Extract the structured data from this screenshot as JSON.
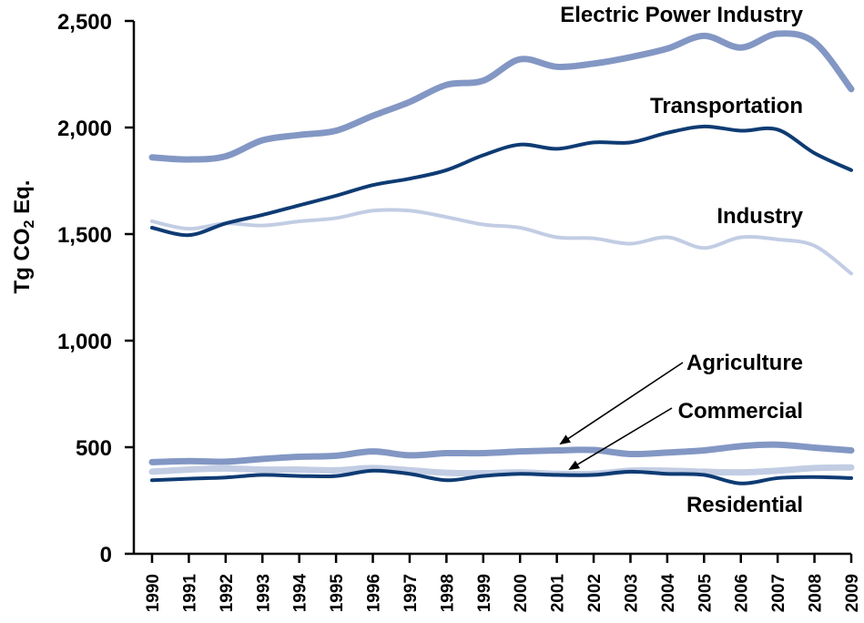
{
  "chart_data": {
    "type": "line",
    "ylabel": "Tg CO₂ Eq.",
    "ylim": [
      0,
      2500
    ],
    "yticks": [
      0,
      500,
      1000,
      1500,
      2000,
      2500
    ],
    "ytick_labels": [
      "0",
      "500",
      "1,000",
      "1,500",
      "2,000",
      "2,500"
    ],
    "x": [
      "1990",
      "1991",
      "1992",
      "1993",
      "1994",
      "1995",
      "1996",
      "1997",
      "1998",
      "1999",
      "2000",
      "2001",
      "2002",
      "2003",
      "2004",
      "2005",
      "2006",
      "2007",
      "2008",
      "2009"
    ],
    "series": [
      {
        "name": "Electric Power Industry",
        "color": "#8397c4",
        "width": 7,
        "values": [
          1860,
          1850,
          1865,
          1940,
          1965,
          1985,
          2055,
          2120,
          2200,
          2220,
          2320,
          2285,
          2300,
          2330,
          2370,
          2430,
          2375,
          2440,
          2400,
          2180
        ]
      },
      {
        "name": "Transportation",
        "color": "#0e3b73",
        "width": 4,
        "values": [
          1530,
          1495,
          1550,
          1590,
          1635,
          1680,
          1730,
          1760,
          1800,
          1870,
          1920,
          1900,
          1930,
          1930,
          1975,
          2005,
          1985,
          1990,
          1880,
          1800
        ]
      },
      {
        "name": "Industry",
        "color": "#c2cde4",
        "width": 4,
        "values": [
          1560,
          1525,
          1550,
          1540,
          1560,
          1575,
          1610,
          1610,
          1580,
          1545,
          1530,
          1485,
          1480,
          1455,
          1485,
          1435,
          1485,
          1475,
          1445,
          1315
        ]
      },
      {
        "name": "Agriculture",
        "color": "#8397c4",
        "width": 7,
        "values": [
          430,
          435,
          432,
          445,
          455,
          460,
          480,
          462,
          472,
          472,
          480,
          485,
          487,
          468,
          475,
          485,
          505,
          512,
          498,
          485
        ]
      },
      {
        "name": "Residential",
        "color": "#0e3b73",
        "width": 4,
        "values": [
          345,
          352,
          358,
          370,
          365,
          365,
          390,
          375,
          345,
          365,
          375,
          370,
          370,
          385,
          375,
          370,
          330,
          355,
          360,
          355
        ]
      },
      {
        "name": "Commercial",
        "color": "#c2cde4",
        "width": 7,
        "values": [
          385,
          395,
          400,
          395,
          395,
          392,
          402,
          392,
          380,
          378,
          382,
          375,
          375,
          390,
          390,
          385,
          382,
          390,
          402,
          405
        ]
      }
    ],
    "grid": false,
    "legend": "inline labels"
  },
  "labels": {
    "electric": "Electric Power Industry",
    "transportation": "Transportation",
    "industry": "Industry",
    "agriculture": "Agriculture",
    "commercial": "Commercial",
    "residential": "Residential"
  }
}
